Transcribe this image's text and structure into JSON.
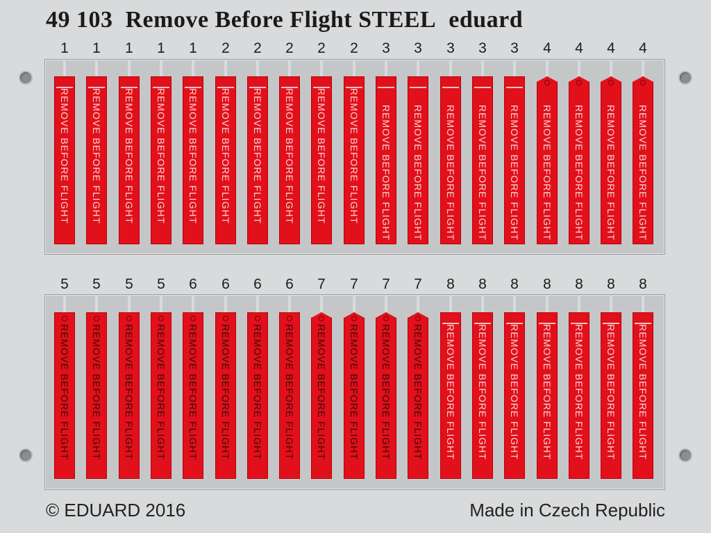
{
  "title": {
    "code": "49 103",
    "name": "Remove Before Flight STEEL",
    "brand": "eduard"
  },
  "tag_text": "REMOVE BEFORE FLIGHT",
  "rows": [
    {
      "numbers": [
        "1",
        "1",
        "1",
        "1",
        "1",
        "2",
        "2",
        "2",
        "2",
        "2",
        "3",
        "3",
        "3",
        "3",
        "3",
        "4",
        "4",
        "4",
        "4"
      ]
    },
    {
      "numbers": [
        "5",
        "5",
        "5",
        "5",
        "6",
        "6",
        "6",
        "6",
        "7",
        "7",
        "7",
        "7",
        "8",
        "8",
        "8",
        "8",
        "8",
        "8",
        "8"
      ]
    }
  ],
  "footer": {
    "copyright": "© EDUARD 2016",
    "origin": "Made in Czech Republic"
  },
  "colors": {
    "tag_red": "#e2101a",
    "fret_gray": "#c5c6c8",
    "background": "#d9dadb"
  }
}
